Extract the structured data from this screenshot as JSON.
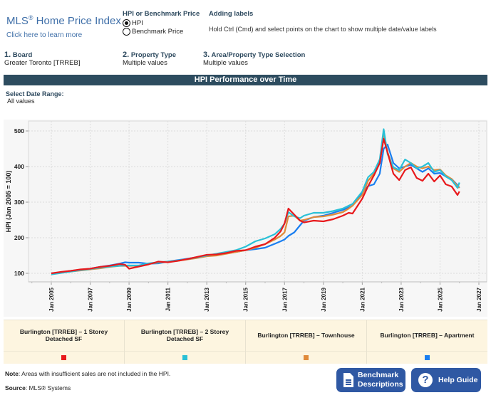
{
  "header": {
    "title": "MLS",
    "title_reg": "®",
    "title_rest": " Home Price Index",
    "learn_more": "Click here to learn more"
  },
  "hpi_toggle": {
    "heading": "HPI or Benchmark Price",
    "options": [
      {
        "label": "HPI",
        "selected": true
      },
      {
        "label": "Benchmark Price",
        "selected": false
      }
    ]
  },
  "adding_labels": {
    "heading": "Adding labels",
    "text": "Hold Ctrl (Cmd) and select points on the chart to show multiple date/value labels"
  },
  "filters": [
    {
      "num": "1.",
      "label": "Board",
      "value": "Greater Toronto [TRREB]"
    },
    {
      "num": "2.",
      "label": "Property Type",
      "value": "Multiple values"
    },
    {
      "num": "3.",
      "label": "Area/Property Type Selection",
      "value": "Multiple values"
    }
  ],
  "section_title": "HPI Performance over Time",
  "date_range": {
    "label": "Select Date Range:",
    "value": "All values"
  },
  "colors": {
    "header_bar": "#2d4c5f",
    "accent_text": "#3f6fa8",
    "button": "#2f58a3",
    "legend_bg": "#fdf5e0"
  },
  "chart_data": {
    "type": "line",
    "title": "HPI Performance over Time",
    "xlabel": "",
    "ylabel": "HPI (Jan 2005 = 100)",
    "ylim": [
      75,
      525
    ],
    "xlim": [
      2004.3,
      2027.3
    ],
    "yticks": [
      100,
      200,
      300,
      400,
      500
    ],
    "xticks": [
      {
        "year": 2005,
        "label": "Jan 2005"
      },
      {
        "year": 2007,
        "label": "Jan 2007"
      },
      {
        "year": 2009,
        "label": "Jan 2009"
      },
      {
        "year": 2011,
        "label": "Jan 2011"
      },
      {
        "year": 2013,
        "label": "Jan 2013"
      },
      {
        "year": 2015,
        "label": "Jan 2015"
      },
      {
        "year": 2017,
        "label": "Jan 2017"
      },
      {
        "year": 2019,
        "label": "Jan 2019"
      },
      {
        "year": 2021,
        "label": "Jan 2021"
      },
      {
        "year": 2023,
        "label": "Jan 2023"
      },
      {
        "year": 2025,
        "label": "Jan 2025"
      },
      {
        "year": 2027,
        "label": "Jan 2027"
      }
    ],
    "grid": true,
    "legend_position": "bottom",
    "x": [
      2005.0,
      2005.5,
      2006.0,
      2006.5,
      2007.0,
      2007.5,
      2008.0,
      2008.5,
      2008.8,
      2009.0,
      2009.5,
      2010.0,
      2010.5,
      2011.0,
      2011.5,
      2012.0,
      2012.5,
      2013.0,
      2013.5,
      2014.0,
      2014.5,
      2015.0,
      2015.5,
      2016.0,
      2016.5,
      2016.8,
      2017.0,
      2017.2,
      2017.5,
      2017.8,
      2018.0,
      2018.5,
      2019.0,
      2019.5,
      2020.0,
      2020.3,
      2020.5,
      2021.0,
      2021.3,
      2021.6,
      2021.9,
      2022.1,
      2022.3,
      2022.6,
      2022.9,
      2023.2,
      2023.5,
      2023.8,
      2024.1,
      2024.4,
      2024.7,
      2025.0,
      2025.3,
      2025.6,
      2025.9,
      2026.0
    ],
    "series": [
      {
        "name": "Burlington [TRREB] – 1 Storey Detached SF",
        "color": "#e8191c",
        "values": [
          100,
          104,
          107,
          111,
          113,
          118,
          121,
          126,
          124,
          113,
          119,
          125,
          133,
          131,
          135,
          140,
          146,
          152,
          153,
          157,
          163,
          165,
          175,
          182,
          200,
          218,
          240,
          282,
          265,
          248,
          243,
          248,
          246,
          252,
          262,
          270,
          268,
          310,
          345,
          375,
          410,
          478,
          440,
          380,
          362,
          390,
          398,
          368,
          360,
          380,
          358,
          375,
          350,
          344,
          320,
          330
        ]
      },
      {
        "name": "Burlington [TRREB] – 2 Storey Detached SF",
        "color": "#29c0d6",
        "values": [
          97,
          101,
          105,
          109,
          112,
          116,
          119,
          121,
          122,
          122,
          122,
          128,
          131,
          133,
          136,
          140,
          145,
          150,
          155,
          160,
          165,
          175,
          190,
          198,
          210,
          225,
          240,
          272,
          260,
          255,
          262,
          270,
          270,
          275,
          282,
          290,
          295,
          330,
          370,
          385,
          420,
          505,
          435,
          398,
          390,
          420,
          410,
          395,
          400,
          410,
          385,
          390,
          372,
          362,
          340,
          355
        ]
      },
      {
        "name": "Burlington [TRREB] – Townhouse",
        "color": "#e08a3a",
        "values": [
          99,
          102,
          105,
          108,
          111,
          114,
          118,
          121,
          121,
          121,
          121,
          127,
          130,
          133,
          135,
          139,
          143,
          148,
          150,
          155,
          160,
          165,
          172,
          182,
          195,
          205,
          215,
          260,
          262,
          248,
          250,
          258,
          260,
          265,
          272,
          282,
          290,
          320,
          360,
          380,
          410,
          495,
          440,
          395,
          385,
          400,
          410,
          400,
          395,
          400,
          390,
          392,
          375,
          365,
          345,
          340
        ]
      },
      {
        "name": "Burlington [TRREB] – Apartment",
        "color": "#1a7ef0",
        "values": [
          100,
          103,
          107,
          110,
          113,
          118,
          122,
          127,
          131,
          130,
          130,
          127,
          128,
          133,
          137,
          141,
          145,
          150,
          153,
          156,
          160,
          165,
          168,
          172,
          183,
          190,
          195,
          205,
          215,
          235,
          248,
          258,
          262,
          270,
          278,
          285,
          290,
          325,
          345,
          350,
          380,
          450,
          462,
          410,
          395,
          400,
          405,
          395,
          385,
          395,
          380,
          382,
          372,
          365,
          348,
          340
        ]
      }
    ]
  },
  "legend": [
    {
      "label": "Burlington [TRREB] – 1 Storey Detached SF",
      "color": "#e8191c"
    },
    {
      "label": "Burlington [TRREB] – 2 Storey Detached SF",
      "color": "#29c0d6"
    },
    {
      "label": "Burlington [TRREB] – Townhouse",
      "color": "#e08a3a"
    },
    {
      "label": "Burlington [TRREB] – Apartment",
      "color": "#1a7ef0"
    }
  ],
  "footer": {
    "note_label": "Note",
    "note_text": ": Areas with insufficient sales are not included in the HPI.",
    "source_label": "Source",
    "source_text": ": MLS® Systems"
  },
  "buttons": {
    "benchmark_line1": "Benchmark",
    "benchmark_line2": "Descriptions",
    "help": "Help Guide"
  }
}
